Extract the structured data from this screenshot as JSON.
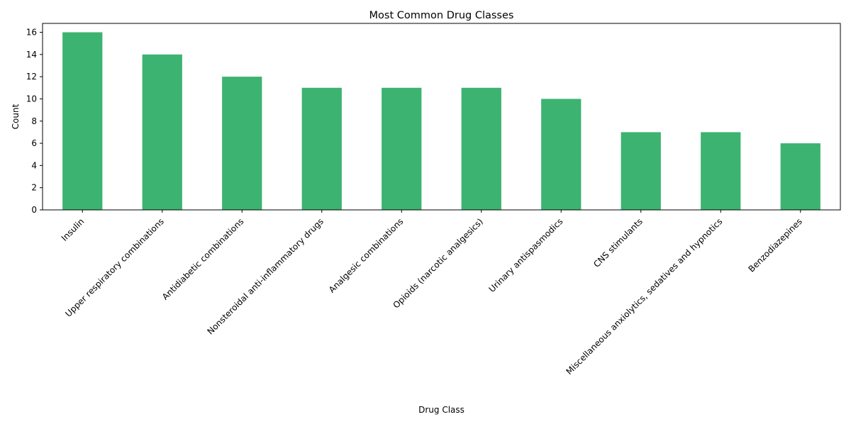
{
  "chart_data": {
    "type": "bar",
    "title": "Most Common Drug Classes",
    "xlabel": "Drug Class",
    "ylabel": "Count",
    "categories": [
      "Insulin",
      "Upper respiratory combinations",
      "Antidiabetic combinations",
      "Nonsteroidal anti-inflammatory drugs",
      "Analgesic combinations",
      "Opioids (narcotic analgesics)",
      "Urinary antispasmodics",
      "CNS stimulants",
      "Miscellaneous anxiolytics, sedatives and hypnotics",
      "Benzodiazepines"
    ],
    "values": [
      16,
      14,
      12,
      11,
      11,
      11,
      10,
      7,
      7,
      6
    ],
    "ylim": [
      0,
      16.8
    ],
    "yticks": [
      0,
      2,
      4,
      6,
      8,
      10,
      12,
      14,
      16
    ],
    "grid": false,
    "bar_color": "#3cb371",
    "x_tick_rotation_deg": 45
  }
}
